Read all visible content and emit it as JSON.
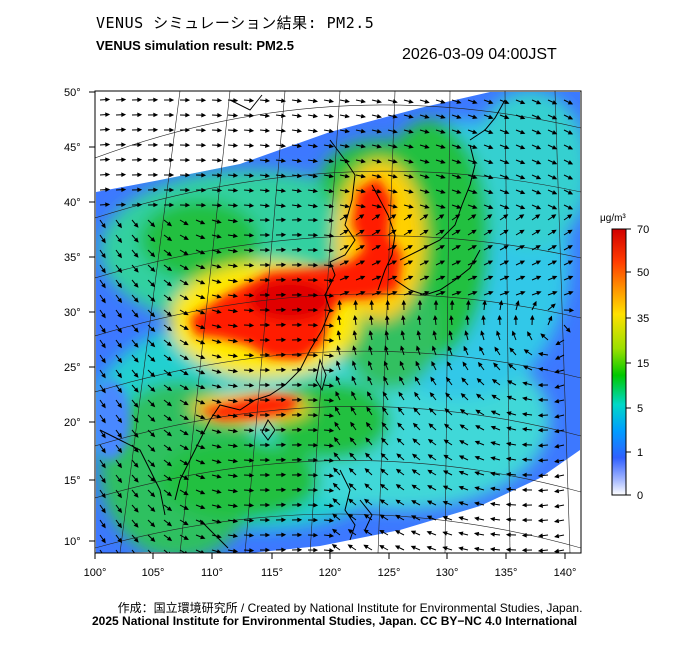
{
  "header": {
    "title_jp": "VENUS シミュレーション結果: PM2.5",
    "title_en": "VENUS simulation result: PM2.5",
    "timestamp": "2026-03-09 04:00JST"
  },
  "map": {
    "lat_ticks": [
      "50°",
      "45°",
      "40°",
      "35°",
      "30°",
      "25°",
      "20°",
      "15°",
      "10°"
    ],
    "lon_ticks": [
      "100°",
      "105°",
      "110°",
      "115°",
      "120°",
      "125°",
      "130°",
      "135°",
      "140°"
    ],
    "lat_range": [
      9,
      50
    ],
    "lon_range": [
      100,
      142
    ],
    "plume_center": "East China Sea / Yellow Sea"
  },
  "colorbar": {
    "unit": "μg/m³",
    "labels": [
      "70",
      "50",
      "35",
      "15",
      "5",
      "1",
      "0"
    ],
    "colors": [
      "#ff0000",
      "#ff8000",
      "#ffff00",
      "#00cc00",
      "#00e6e6",
      "#0066ff",
      "#ffffff"
    ]
  },
  "footer": {
    "credit_line1": "作成：国立環境研究所 / Created by National Institute for Environmental Studies, Japan.",
    "credit_line2": "2025 National Institute for Environmental Studies, Japan. CC BY−NC 4.0 International"
  }
}
